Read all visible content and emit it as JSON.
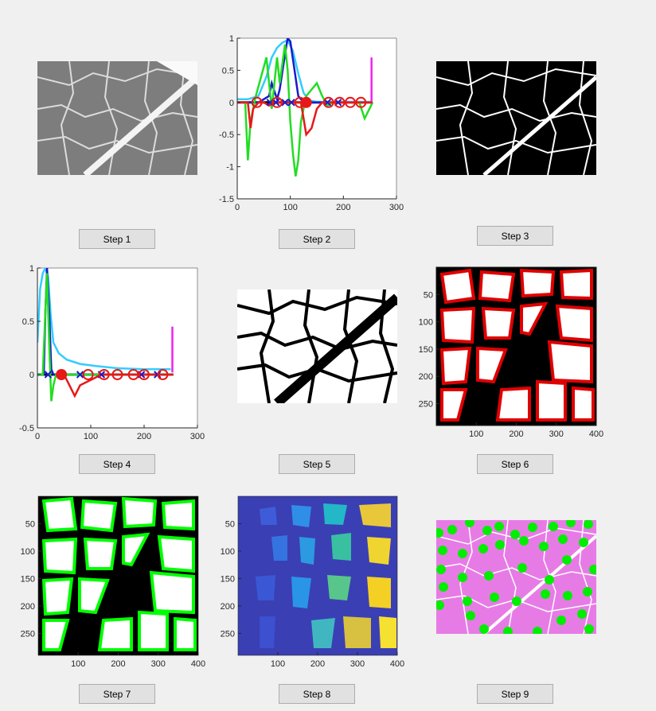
{
  "buttons": [
    "Step 1",
    "Step 2",
    "Step 3",
    "Step 4",
    "Step 5",
    "Step 6",
    "Step 7",
    "Step 8",
    "Step 9"
  ],
  "colors": {
    "figure_bg": "#f0f0f0",
    "mask_black": "#000000",
    "mask_white": "#ffffff",
    "cyan": "#33ccff",
    "blue": "#1a1acc",
    "green": "#22dd22",
    "red": "#e81818",
    "magenta": "#ee22ee",
    "overlay_green": "#00ff00",
    "overlay_red": "#e00000",
    "parula_bg": "#3b3fb4",
    "he_pink": "#e77be6"
  },
  "chart_step2": {
    "type": "line",
    "xlim": [
      0,
      300
    ],
    "ylim": [
      -1.5,
      1
    ],
    "xticks": [
      "0",
      "100",
      "200",
      "300"
    ],
    "yticks": [
      "1",
      "0.5",
      "0",
      "-0.5",
      "-1",
      "-1.5"
    ],
    "series": [
      {
        "color": "cyan",
        "x": [
          0,
          20,
          40,
          55,
          65,
          75,
          85,
          95,
          105,
          115,
          125,
          135,
          150,
          255
        ],
        "y": [
          0.05,
          0.05,
          0.1,
          0.4,
          0.7,
          0.85,
          0.93,
          0.97,
          0.8,
          0.45,
          0.15,
          0.03,
          0.01,
          0.01
        ]
      },
      {
        "color": "blue",
        "x": [
          0,
          40,
          60,
          65,
          75,
          80,
          90,
          95,
          100,
          108,
          115,
          125,
          255
        ],
        "y": [
          0,
          0,
          0.1,
          0.3,
          0.05,
          0.2,
          0.75,
          1.0,
          0.95,
          0.5,
          0.1,
          0,
          0
        ]
      },
      {
        "color": "green",
        "x": [
          0,
          15,
          20,
          25,
          35,
          45,
          55,
          60,
          65,
          70,
          75,
          80,
          85,
          90,
          95,
          100,
          105,
          110,
          115,
          120,
          130,
          140,
          150,
          160,
          170,
          180,
          200,
          230,
          240,
          255
        ],
        "y": [
          0,
          0,
          -0.9,
          -0.3,
          0.1,
          0.4,
          0.7,
          0.3,
          -0.1,
          0.3,
          0.7,
          0.3,
          0.6,
          0.9,
          0.5,
          -0.3,
          -0.8,
          -1.15,
          -0.9,
          -0.3,
          0.1,
          0.2,
          0.3,
          0.1,
          -0.05,
          0,
          0,
          0,
          -0.25,
          0
        ]
      },
      {
        "color": "red",
        "x": [
          0,
          20,
          25,
          30,
          40,
          50,
          60,
          70,
          80,
          90,
          100,
          110,
          120,
          130,
          140,
          150,
          160,
          170,
          180,
          200,
          255
        ],
        "y": [
          0,
          0,
          -0.4,
          -0.1,
          0,
          0,
          -0.05,
          0,
          0,
          0,
          0,
          0,
          0,
          -0.5,
          -0.4,
          -0.1,
          0,
          0,
          0,
          0,
          0
        ],
        "xstart": 20
      },
      {
        "color": "magenta",
        "x": [
          253,
          253
        ],
        "y": [
          0.02,
          0.7
        ]
      }
    ],
    "x_markers": [
      62,
      73,
      90,
      102,
      170,
      190
    ],
    "o_markers": [
      37,
      75,
      118,
      172,
      193,
      213,
      233
    ],
    "star_markers": [
      130
    ],
    "baseline": [
      0,
      253
    ]
  },
  "chart_step4": {
    "type": "line",
    "xlim": [
      0,
      300
    ],
    "ylim": [
      -0.5,
      1
    ],
    "xticks": [
      "0",
      "100",
      "200",
      "300"
    ],
    "yticks": [
      "1",
      "0.5",
      "0",
      "-0.5"
    ],
    "series": [
      {
        "color": "cyan",
        "x": [
          0,
          5,
          10,
          15,
          20,
          25,
          30,
          40,
          55,
          80,
          110,
          150,
          200,
          250
        ],
        "y": [
          0.3,
          0.8,
          0.95,
          1.0,
          0.92,
          0.55,
          0.3,
          0.2,
          0.14,
          0.1,
          0.08,
          0.06,
          0.05,
          0.05
        ]
      },
      {
        "color": "blue",
        "x": [
          0,
          12,
          15,
          18,
          22,
          26,
          30,
          255
        ],
        "y": [
          0,
          0,
          0.6,
          1.0,
          0.6,
          0.05,
          0,
          0
        ]
      },
      {
        "color": "green",
        "x": [
          0,
          10,
          15,
          18,
          22,
          26,
          30,
          35,
          40,
          60,
          255
        ],
        "y": [
          0,
          0,
          0.6,
          0.95,
          0.3,
          -0.25,
          -0.1,
          0,
          0,
          0,
          0
        ]
      },
      {
        "color": "red",
        "x": [
          40,
          50,
          60,
          70,
          80,
          100,
          120,
          140,
          160,
          180,
          200,
          220,
          240,
          255
        ],
        "y": [
          0,
          0,
          -0.1,
          -0.2,
          -0.1,
          -0.05,
          0,
          0,
          0,
          0,
          0,
          0,
          0,
          0
        ]
      },
      {
        "color": "magenta",
        "x": [
          253,
          253
        ],
        "y": [
          0.02,
          0.45
        ]
      }
    ],
    "x_markers": [
      20,
      80,
      120,
      195,
      225
    ],
    "o_markers": [
      95,
      125,
      150,
      180,
      200,
      235
    ],
    "star_markers": [
      45
    ],
    "baseline": [
      0,
      253
    ]
  },
  "chart_step6": {
    "xticks": [
      "100",
      "200",
      "300",
      "400"
    ],
    "yticks": [
      "50",
      "100",
      "150",
      "200",
      "250"
    ],
    "xlim": [
      0,
      400
    ],
    "ylim": [
      0,
      290
    ]
  },
  "chart_step7": {
    "xticks": [
      "100",
      "200",
      "300",
      "400"
    ],
    "yticks": [
      "50",
      "100",
      "150",
      "200",
      "250"
    ],
    "xlim": [
      0,
      400
    ],
    "ylim": [
      0,
      290
    ]
  },
  "chart_step8": {
    "xticks": [
      "100",
      "200",
      "300",
      "400"
    ],
    "yticks": [
      "50",
      "100",
      "150",
      "200",
      "250"
    ],
    "xlim": [
      0,
      400
    ],
    "ylim": [
      0,
      290
    ]
  }
}
